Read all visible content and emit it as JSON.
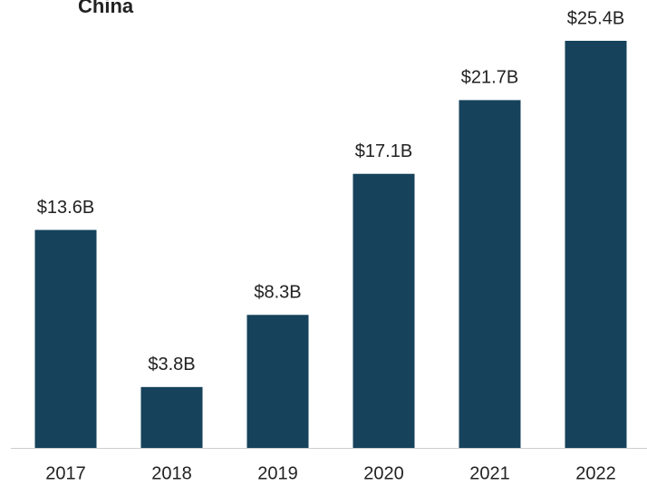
{
  "chart_data": {
    "type": "bar",
    "title": "China",
    "categories": [
      "2017",
      "2018",
      "2019",
      "2020",
      "2021",
      "2022"
    ],
    "values": [
      13.6,
      3.8,
      8.3,
      17.1,
      21.7,
      25.4
    ],
    "value_labels": [
      "$13.6B",
      "$3.8B",
      "$8.3B",
      "$17.1B",
      "$21.7B",
      "$25.4B"
    ],
    "color": "#16425b"
  }
}
